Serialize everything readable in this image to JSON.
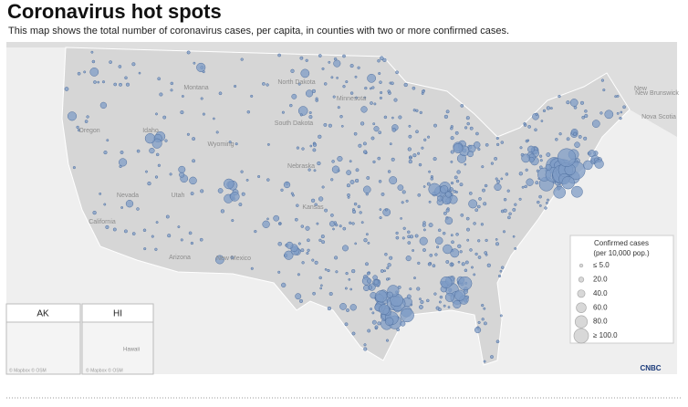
{
  "header": {
    "title": "Coronavirus hot spots",
    "subtitle": "This map shows the total number of coronavirus cases, per capita, in counties with two or more confirmed cases."
  },
  "map": {
    "labels": [
      "Montana",
      "North Dakota",
      "South Dakota",
      "Minnesota",
      "Oregon",
      "Idaho",
      "Wyoming",
      "Nebraska",
      "Nevada",
      "Utah",
      "California",
      "Kansas",
      "Arizona",
      "New Mexico",
      "New Brunswick",
      "Nova Scotia",
      "New"
    ],
    "insets": [
      "AK",
      "HI"
    ],
    "inset_place": "Hawaii",
    "attribution": "© Mapbox © OSM",
    "logo": "CNBC"
  },
  "legend": {
    "title": "Confirmed cases",
    "subtitle": "(per 10,000 pop.)",
    "items": [
      {
        "value": 5,
        "label": "≤ 5.0"
      },
      {
        "value": 20,
        "label": "20.0"
      },
      {
        "value": 40,
        "label": "40.0"
      },
      {
        "value": 60,
        "label": "60.0"
      },
      {
        "value": 80,
        "label": "80.0"
      },
      {
        "value": 100,
        "label": "≥ 100.0"
      }
    ]
  }
}
